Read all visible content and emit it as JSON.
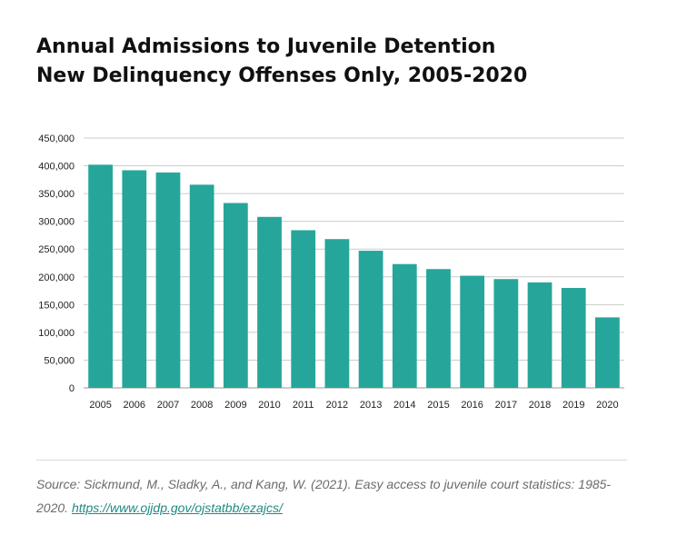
{
  "chart_data": {
    "type": "bar",
    "title": "Annual Admissions to Juvenile Detention",
    "subtitle": "New Delinquency Offenses Only, 2005-2020",
    "xlabel": "",
    "ylabel": "",
    "categories": [
      "2005",
      "2006",
      "2007",
      "2008",
      "2009",
      "2010",
      "2011",
      "2012",
      "2013",
      "2014",
      "2015",
      "2016",
      "2017",
      "2018",
      "2019",
      "2020"
    ],
    "values": [
      402000,
      392000,
      388000,
      366000,
      333000,
      308000,
      284000,
      268000,
      247000,
      223000,
      214000,
      202000,
      196000,
      190000,
      180000,
      127000
    ],
    "ylim": [
      0,
      450000
    ],
    "yticks": [
      0,
      50000,
      100000,
      150000,
      200000,
      250000,
      300000,
      350000,
      400000,
      450000
    ],
    "ytick_labels": [
      "0",
      "50,000",
      "100,000",
      "150,000",
      "200,000",
      "250,000",
      "300,000",
      "350,000",
      "400,000",
      "450,000"
    ],
    "grid": true,
    "legend": "none",
    "bar_color": "#26a69a",
    "grid_color": "#cccccc"
  },
  "source": {
    "text": "Source: Sickmund, M., Sladky, A., and Kang, W. (2021). Easy access to juvenile court statistics: 1985-2020. ",
    "link_text": "https://www.ojjdp.gov/ojstatbb/ezajcs/",
    "link_color": "#1f8a84"
  }
}
